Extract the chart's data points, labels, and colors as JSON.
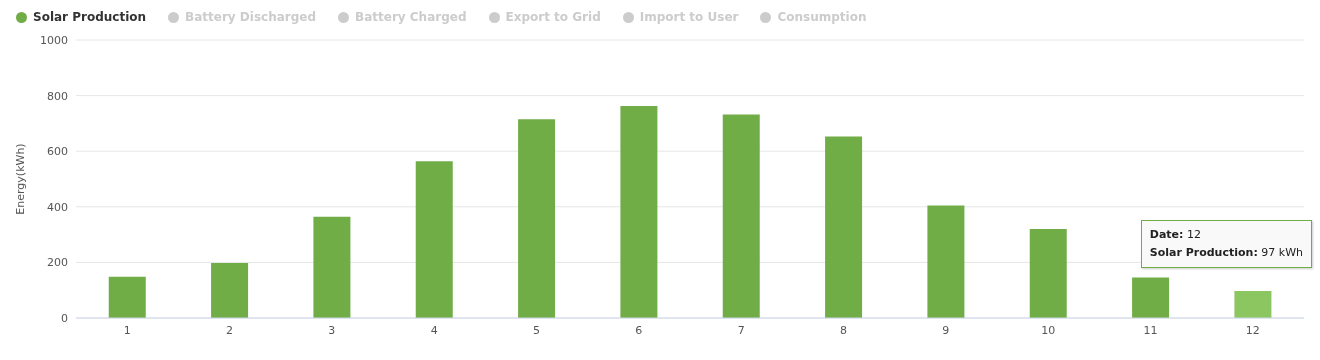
{
  "chart_data": {
    "type": "bar",
    "ylabel": "Energy(kWh)",
    "categories": [
      "1",
      "2",
      "3",
      "4",
      "5",
      "6",
      "7",
      "8",
      "9",
      "10",
      "11",
      "12"
    ],
    "series": [
      {
        "name": "Solar Production",
        "color": "#70ad47",
        "colors": [
          "#70ad47",
          "#70ad47",
          "#70ad47",
          "#70ad47",
          "#70ad47",
          "#70ad47",
          "#70ad47",
          "#70ad47",
          "#70ad47",
          "#70ad47",
          "#70ad47",
          "#8cc660"
        ],
        "values": [
          148,
          198,
          364,
          564,
          715,
          763,
          732,
          653,
          405,
          320,
          146,
          97
        ]
      },
      {
        "name": "Battery Discharged",
        "color": "#cccccc",
        "values": [
          null,
          null,
          null,
          null,
          null,
          null,
          null,
          null,
          null,
          null,
          null,
          null
        ]
      },
      {
        "name": "Battery Charged",
        "color": "#cccccc",
        "values": [
          null,
          null,
          null,
          null,
          null,
          null,
          null,
          null,
          null,
          null,
          null,
          null
        ]
      },
      {
        "name": "Export to Grid",
        "color": "#cccccc",
        "values": [
          null,
          null,
          null,
          null,
          null,
          null,
          null,
          null,
          null,
          null,
          null,
          null
        ]
      },
      {
        "name": "Import to User",
        "color": "#cccccc",
        "values": [
          null,
          null,
          null,
          null,
          null,
          null,
          null,
          null,
          null,
          null,
          null,
          null
        ]
      },
      {
        "name": "Consumption",
        "color": "#cccccc",
        "values": [
          null,
          null,
          null,
          null,
          null,
          null,
          null,
          null,
          null,
          null,
          null,
          null
        ]
      }
    ],
    "ylim": [
      0,
      1000
    ],
    "yticks": [
      0,
      200,
      400,
      600,
      800,
      1000
    ],
    "grid": "y",
    "legend": "top left",
    "annotations": [
      "Date: 12\nSolar Production: 97 kWh"
    ]
  }
}
